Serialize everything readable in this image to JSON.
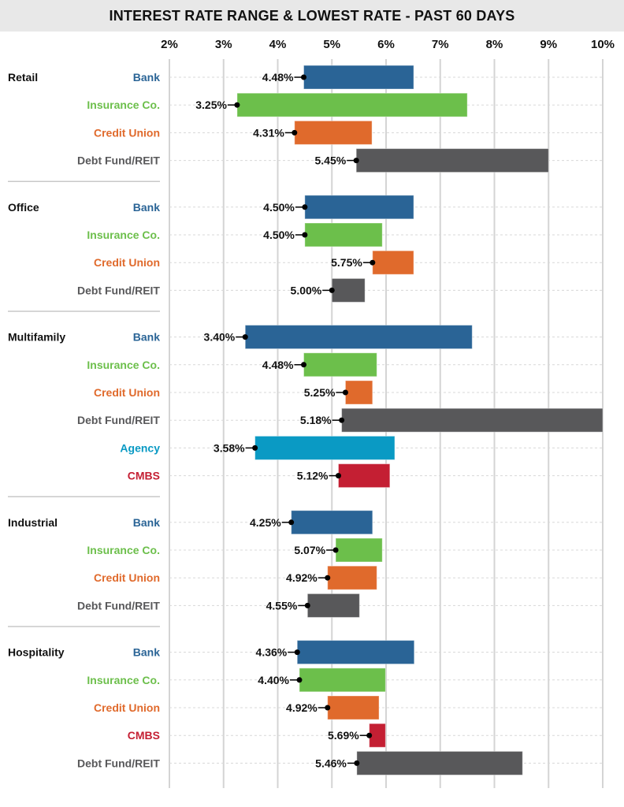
{
  "chart_data": {
    "type": "bar",
    "subtype": "floating-range",
    "title": "INTEREST RATE RANGE & LOWEST RATE - PAST 60 DAYS",
    "xlim": [
      2,
      10
    ],
    "x_ticks": [
      "2%",
      "3%",
      "4%",
      "5%",
      "6%",
      "7%",
      "8%",
      "9%",
      "10%"
    ],
    "x_axis_position": "top",
    "grid": "vertical",
    "lender_colors": {
      "Bank": "#2a6496",
      "Insurance Co.": "#6cbf4b",
      "Credit Union": "#e06a2c",
      "Debt Fund/REIT": "#58585a",
      "Agency": "#0a9ac4",
      "CMBS": "#c41f33"
    },
    "groups": [
      {
        "name": "Retail",
        "rows": [
          {
            "lender": "Bank",
            "low": 4.48,
            "high": 6.51,
            "label": "4.48%"
          },
          {
            "lender": "Insurance Co.",
            "low": 3.25,
            "high": 7.5,
            "label": "3.25%"
          },
          {
            "lender": "Credit Union",
            "low": 4.31,
            "high": 5.74,
            "label": "4.31%"
          },
          {
            "lender": "Debt Fund/REIT",
            "low": 5.45,
            "high": 9.0,
            "label": "5.45%"
          }
        ]
      },
      {
        "name": "Office",
        "rows": [
          {
            "lender": "Bank",
            "low": 4.5,
            "high": 6.51,
            "label": "4.50%"
          },
          {
            "lender": "Insurance Co.",
            "low": 4.5,
            "high": 5.93,
            "label": "4.50%"
          },
          {
            "lender": "Credit Union",
            "low": 5.75,
            "high": 6.51,
            "label": "5.75%"
          },
          {
            "lender": "Debt Fund/REIT",
            "low": 5.0,
            "high": 5.61,
            "label": "5.00%"
          }
        ]
      },
      {
        "name": "Multifamily",
        "rows": [
          {
            "lender": "Bank",
            "low": 3.4,
            "high": 7.59,
            "label": "3.40%"
          },
          {
            "lender": "Insurance Co.",
            "low": 4.48,
            "high": 5.83,
            "label": "4.48%"
          },
          {
            "lender": "Credit Union",
            "low": 5.25,
            "high": 5.75,
            "label": "5.25%"
          },
          {
            "lender": "Debt Fund/REIT",
            "low": 5.18,
            "high": 10.0,
            "label": "5.18%"
          },
          {
            "lender": "Agency",
            "low": 3.58,
            "high": 6.16,
            "label": "3.58%"
          },
          {
            "lender": "CMBS",
            "low": 5.12,
            "high": 6.07,
            "label": "5.12%"
          }
        ]
      },
      {
        "name": "Industrial",
        "rows": [
          {
            "lender": "Bank",
            "low": 4.25,
            "high": 5.75,
            "label": "4.25%"
          },
          {
            "lender": "Insurance Co.",
            "low": 5.07,
            "high": 5.93,
            "label": "5.07%"
          },
          {
            "lender": "Credit Union",
            "low": 4.92,
            "high": 5.83,
            "label": "4.92%"
          },
          {
            "lender": "Debt Fund/REIT",
            "low": 4.55,
            "high": 5.51,
            "label": "4.55%"
          }
        ]
      },
      {
        "name": "Hospitality",
        "rows": [
          {
            "lender": "Bank",
            "low": 4.36,
            "high": 6.52,
            "label": "4.36%"
          },
          {
            "lender": "Insurance Co.",
            "low": 4.4,
            "high": 5.99,
            "label": "4.40%"
          },
          {
            "lender": "Credit Union",
            "low": 4.92,
            "high": 5.87,
            "label": "4.92%"
          },
          {
            "lender": "CMBS",
            "low": 5.69,
            "high": 5.99,
            "label": "5.69%"
          },
          {
            "lender": "Debt Fund/REIT",
            "low": 5.46,
            "high": 8.52,
            "label": "5.46%"
          }
        ]
      }
    ]
  }
}
